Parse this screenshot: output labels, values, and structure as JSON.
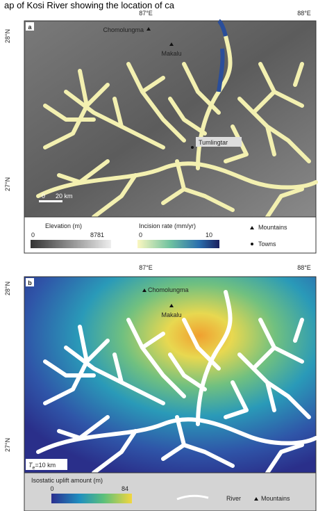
{
  "caption": "ap of Kosi River showing the location of ca",
  "panel_a": {
    "label": "a",
    "lon_ticks": [
      "87°E",
      "88°E"
    ],
    "lat_ticks": [
      "28°N",
      "27°N"
    ],
    "places": {
      "mountain_1": "Chomolungma",
      "mountain_2": "Makalu",
      "town": "Tumlingtar"
    },
    "scale_zero": 0,
    "scale_bar": "20 km",
    "legend": {
      "elevation_title": "Elevation (m)",
      "elevation_min": 0,
      "elevation_max": 8781,
      "incision_title": "Incision rate (mm/yr)",
      "incision_min": 0,
      "incision_max": 10,
      "mountains": "Mountains",
      "towns": "Towns"
    }
  },
  "panel_b": {
    "label": "b",
    "lon_ticks": [
      "87°E",
      "88°E"
    ],
    "lat_ticks": [
      "28°N",
      "27°N"
    ],
    "places": {
      "mountain_1": "Chomolungma",
      "mountain_2": "Makalu"
    },
    "te_label": {
      "symbol": "T",
      "subscript": "e",
      "rest": "=10 km"
    },
    "legend": {
      "uplift_title": "Isostatic uplift amount (m)",
      "uplift_min": 0,
      "uplift_max": 84,
      "river": "River",
      "mountains": "Mountains"
    }
  }
}
